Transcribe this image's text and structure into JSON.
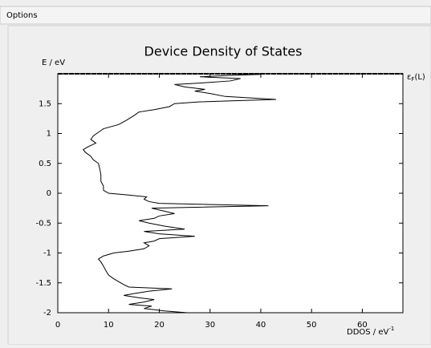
{
  "menu": {
    "title": "Options"
  },
  "chart_data": {
    "type": "line",
    "title": "Device Density of States",
    "ylabel": "E / eV",
    "xlabel": "DDOS / eV",
    "xlabel_sup": "-1",
    "annotation": {
      "symbol": "ε",
      "sub": "F",
      "suffix": "(L)"
    },
    "fermi_level": 2,
    "xlim": [
      0,
      68
    ],
    "xticks": [
      0,
      10,
      20,
      30,
      40,
      50,
      60
    ],
    "ylim": [
      -2,
      2
    ],
    "yticks": [
      -2,
      -1.5,
      -1,
      -0.5,
      0,
      0.5,
      1,
      1.5
    ],
    "color": "#000000",
    "y": [
      -2.0,
      -1.97,
      -1.93,
      -1.89,
      -1.86,
      -1.82,
      -1.78,
      -1.75,
      -1.71,
      -1.68,
      -1.64,
      -1.6,
      -1.57,
      -1.53,
      -1.48,
      -1.43,
      -1.37,
      -1.3,
      -1.22,
      -1.15,
      -1.1,
      -1.05,
      -1.0,
      -0.97,
      -0.93,
      -0.88,
      -0.83,
      -0.8,
      -0.76,
      -0.72,
      -0.68,
      -0.64,
      -0.6,
      -0.55,
      -0.5,
      -0.46,
      -0.42,
      -0.38,
      -0.34,
      -0.3,
      -0.25,
      -0.21,
      -0.17,
      -0.14,
      -0.1,
      -0.06,
      -0.03,
      0.0,
      0.05,
      0.12,
      0.2,
      0.3,
      0.4,
      0.5,
      0.56,
      0.62,
      0.68,
      0.73,
      0.78,
      0.84,
      0.9,
      0.96,
      1.02,
      1.08,
      1.15,
      1.22,
      1.3,
      1.36,
      1.4,
      1.45,
      1.5,
      1.53,
      1.57,
      1.62,
      1.67,
      1.71,
      1.74,
      1.78,
      1.82,
      1.85,
      1.88,
      1.92,
      1.95,
      1.97,
      1.99
    ],
    "values": [
      25.5,
      21,
      17,
      18.5,
      14,
      17,
      19,
      16,
      13,
      15,
      18,
      22.5,
      14,
      13,
      12,
      11,
      10,
      9.5,
      9,
      8.5,
      8,
      9,
      11,
      14,
      17,
      18,
      17,
      19,
      20,
      27,
      20,
      17,
      25,
      21,
      18,
      16,
      19,
      20,
      23,
      21,
      18.5,
      41.5,
      20,
      18,
      17,
      17.5,
      14,
      10,
      9,
      9,
      8.5,
      8.5,
      8.3,
      8,
      7,
      6.5,
      5.5,
      5,
      6,
      7.5,
      6.5,
      7,
      8,
      9,
      12,
      13.5,
      15,
      16,
      19,
      22,
      23,
      28,
      43,
      33,
      30,
      27,
      29,
      25,
      23,
      29,
      34,
      36,
      28,
      33,
      40
    ]
  }
}
